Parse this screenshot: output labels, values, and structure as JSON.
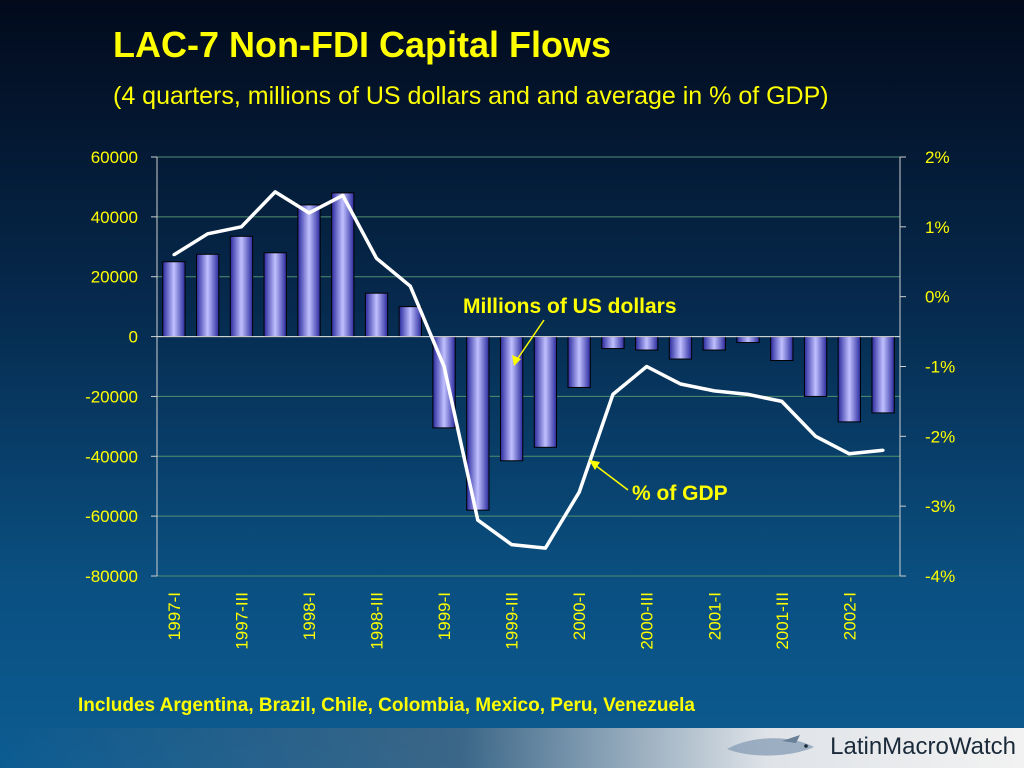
{
  "slide": {
    "title": "LAC-7 Non-FDI Capital Flows",
    "subtitle": "(4 quarters, millions of US dollars and and average in % of GDP)",
    "footnote": "Includes Argentina, Brazil, Chile, Colombia, Mexico, Peru, Venezuela",
    "logo_text": "LatinMacroWatch"
  },
  "colors": {
    "text": "#ffff00",
    "bar_light": "#b8b8ff",
    "bar_dark": "#3030a8",
    "line": "#ffffff",
    "grid": "#4f8f6f"
  },
  "chart_data": {
    "type": "bar",
    "categories": [
      "1997-I",
      "1997-II",
      "1997-III",
      "1997-IV",
      "1998-I",
      "1998-II",
      "1998-III",
      "1998-IV",
      "1999-I",
      "1999-II",
      "1999-III",
      "1999-IV",
      "2000-I",
      "2000-II",
      "2000-III",
      "2000-IV",
      "2001-I",
      "2001-II",
      "2001-III",
      "2001-IV",
      "2002-I",
      "2002-II"
    ],
    "x_tick_labels": [
      "1997-I",
      "",
      "1997-III",
      "",
      "1998-I",
      "",
      "1998-III",
      "",
      "1999-I",
      "",
      "1999-III",
      "",
      "2000-I",
      "",
      "2000-III",
      "",
      "2001-I",
      "",
      "2001-III",
      "",
      "2002-I",
      ""
    ],
    "series": [
      {
        "name": "Millions of US dollars",
        "type": "bar",
        "axis": "left",
        "values": [
          25000,
          27500,
          33500,
          28000,
          44000,
          48000,
          14500,
          10000,
          -30500,
          -58000,
          -41500,
          -37000,
          -17000,
          -4000,
          -4500,
          -7500,
          -4500,
          -2000,
          -8000,
          -20000,
          -28500,
          -25500
        ]
      },
      {
        "name": "% of GDP",
        "type": "line",
        "axis": "right",
        "values": [
          0.6,
          0.9,
          1.0,
          1.5,
          1.2,
          1.45,
          0.55,
          0.15,
          -1.0,
          -3.2,
          -3.55,
          -3.6,
          -2.8,
          -1.4,
          -1.0,
          -1.25,
          -1.35,
          -1.4,
          -1.5,
          -2.0,
          -2.25,
          -2.2
        ]
      }
    ],
    "y_left": {
      "min": -80000,
      "max": 60000,
      "ticks": [
        60000,
        40000,
        20000,
        0,
        -20000,
        -40000,
        -60000,
        -80000
      ]
    },
    "y_right": {
      "min": -4,
      "max": 2,
      "ticks": [
        "2%",
        "1%",
        "0%",
        "-1%",
        "-2%",
        "-3%",
        "-4%"
      ]
    },
    "annotations": [
      "Millions of US dollars",
      "% of GDP"
    ],
    "grid": true
  }
}
